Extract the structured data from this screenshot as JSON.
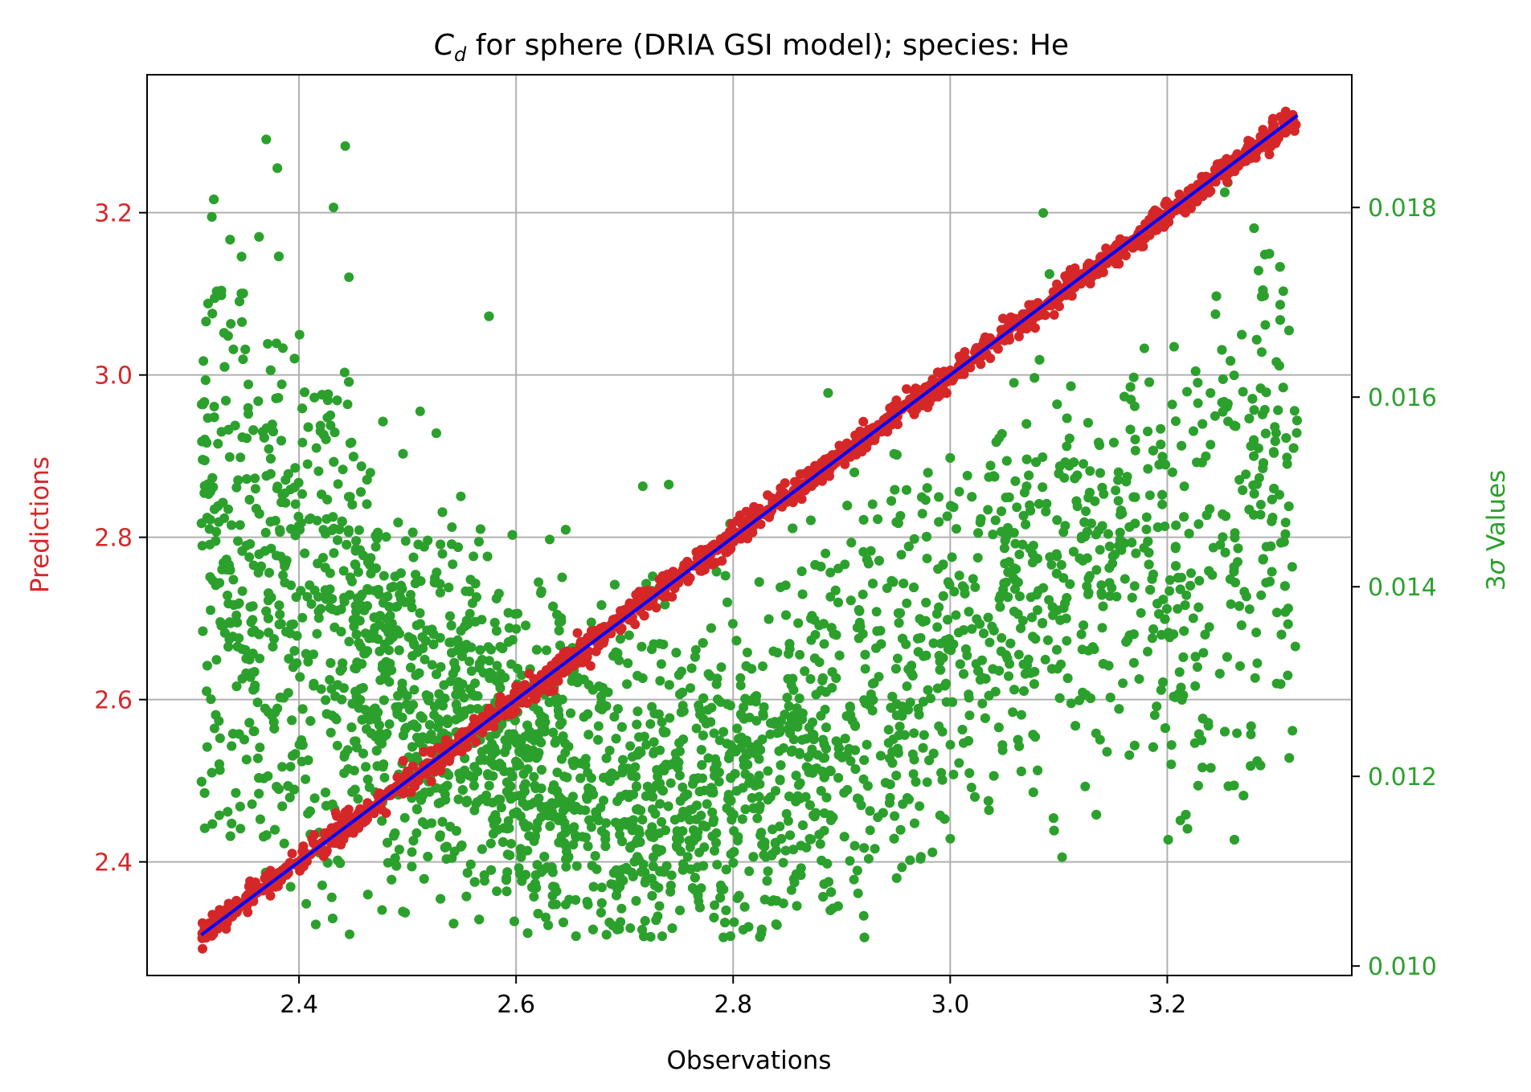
{
  "colors": {
    "predictions": "#d62728",
    "sigma": "#2ca02c",
    "fit_line": "#0000ff",
    "grid": "#b0b0b0",
    "axis": "#000000"
  },
  "chart_data": {
    "type": "scatter",
    "title": {
      "main": "C",
      "subscript": "d",
      "rest": " for sphere (DRIA GSI model); species: He"
    },
    "xlabel": "Observations",
    "ylabel_left": "Predictions",
    "ylabel_right_prefix": "3",
    "ylabel_right_symbol": "σ",
    "ylabel_right_suffix": " Values",
    "xlim": [
      2.26,
      3.37
    ],
    "ylim_left": [
      2.26,
      3.37
    ],
    "ylim_right": [
      0.0099,
      0.0194
    ],
    "x_ticks": [
      "2.4",
      "2.6",
      "2.8",
      "3.0",
      "3.2"
    ],
    "y_left_ticks": [
      "2.4",
      "2.6",
      "2.8",
      "3.0",
      "3.2"
    ],
    "y_right_ticks": [
      "0.010",
      "0.012",
      "0.014",
      "0.016",
      "0.018"
    ],
    "grid": true,
    "series": [
      {
        "axis": "left",
        "description_points": "Predictions vs observations, tightly along the identity line",
        "x_range": [
          2.31,
          3.32
        ],
        "relation": "y = x",
        "scatter_spread": 0.008
      },
      {
        "axis": "right",
        "x_range": [
          2.31,
          3.32
        ],
        "trend_x": [
          2.31,
          2.4,
          2.5,
          2.6,
          2.7,
          2.8,
          2.9,
          3.0,
          3.1,
          3.2,
          3.32
        ],
        "trend_y": [
          0.0142,
          0.0138,
          0.0128,
          0.012,
          0.0116,
          0.0117,
          0.0125,
          0.0135,
          0.014,
          0.014,
          0.015
        ],
        "spread": 0.001,
        "y_min": 0.0103,
        "y_max": 0.0191
      },
      {
        "axis": "left",
        "type": "line",
        "x": [
          2.31,
          3.32
        ],
        "y": [
          2.31,
          3.32
        ]
      }
    ]
  }
}
